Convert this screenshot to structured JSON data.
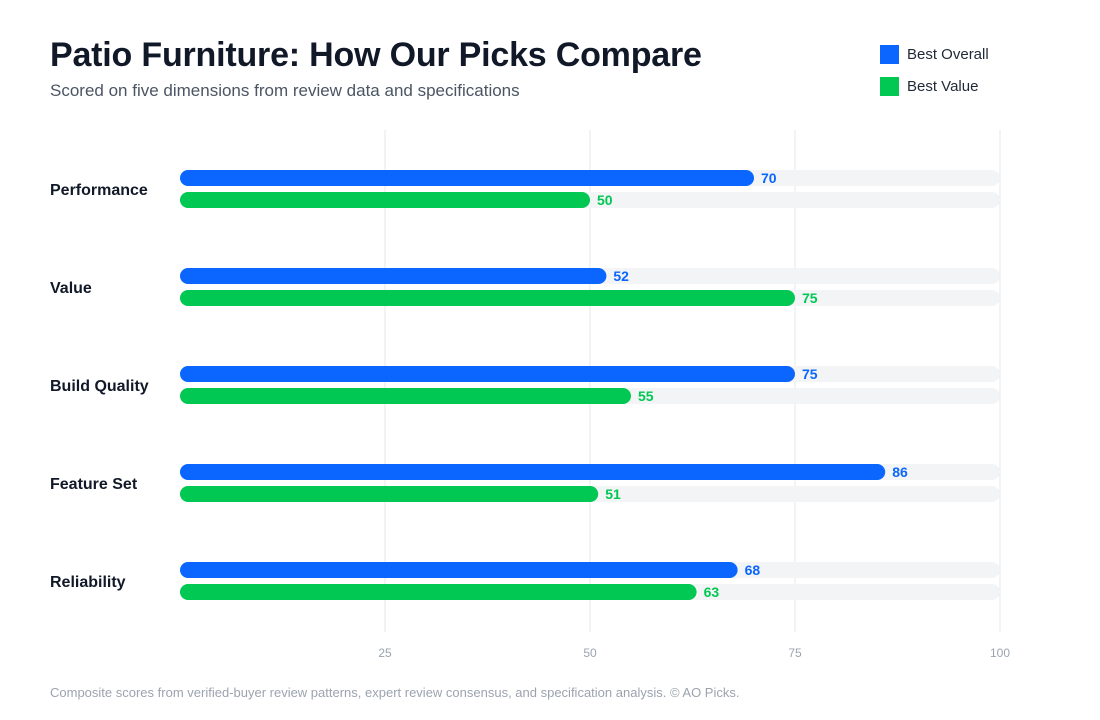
{
  "chart_data": {
    "type": "bar",
    "orientation": "horizontal",
    "title": "Patio Furniture: How Our Picks Compare",
    "subtitle": "Scored on five dimensions from review data and specifications",
    "categories": [
      "Performance",
      "Value",
      "Build Quality",
      "Feature Set",
      "Reliability"
    ],
    "series": [
      {
        "name": "Best Overall",
        "color": "#0a66ff",
        "values": [
          70,
          52,
          75,
          86,
          68
        ]
      },
      {
        "name": "Best Value",
        "color": "#00c853",
        "values": [
          50,
          75,
          55,
          51,
          63
        ]
      }
    ],
    "xlim": [
      0,
      100
    ],
    "xticks": [
      25,
      50,
      75,
      100
    ],
    "grid": true,
    "legend_position": "top-right",
    "track_color": "#f3f4f6",
    "footnote": "Composite scores from verified-buyer review patterns, expert review consensus, and specification analysis. © AO Picks."
  }
}
